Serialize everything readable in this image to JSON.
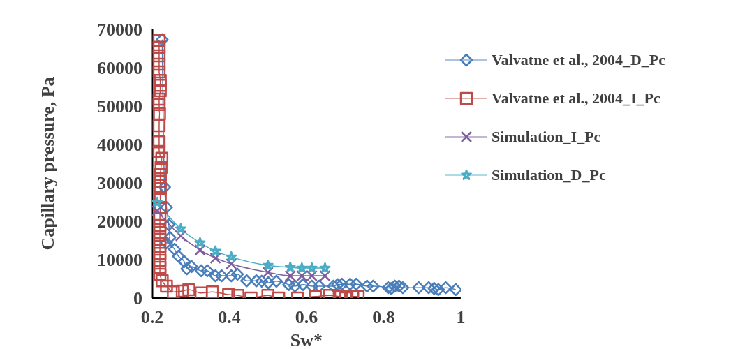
{
  "chart_data": {
    "type": "line",
    "xlabel": "Sw*",
    "ylabel": "Capillary pressure, Pa",
    "xlim": [
      0.2,
      1
    ],
    "xticks": [
      0.2,
      0.4,
      0.6,
      0.8,
      1
    ],
    "ylim": [
      0,
      70000
    ],
    "yticks": [
      0,
      10000,
      20000,
      30000,
      40000,
      50000,
      60000,
      70000
    ],
    "grid": false,
    "legend": "top right",
    "line_style": "solid",
    "series": [
      {
        "name": "Valvatne et al., 2004_D_Pc",
        "color": "#4a7ebb",
        "marker": "diamond",
        "x": [
          0.226,
          0.232,
          0.237,
          0.243,
          0.246,
          0.237,
          0.258,
          0.268,
          0.283,
          0.29,
          0.302,
          0.327,
          0.343,
          0.364,
          0.38,
          0.405,
          0.421,
          0.445,
          0.47,
          0.484,
          0.501,
          0.522,
          0.554,
          0.57,
          0.591,
          0.614,
          0.633,
          0.67,
          0.681,
          0.692,
          0.713,
          0.729,
          0.757,
          0.773,
          0.812,
          0.82,
          0.829,
          0.84,
          0.85,
          0.891,
          0.917,
          0.931,
          0.942,
          0.961,
          0.987
        ],
        "values": [
          67300,
          28900,
          23600,
          19100,
          15800,
          14400,
          12700,
          10900,
          9500,
          7600,
          8200,
          7100,
          7100,
          5800,
          5800,
          5800,
          6200,
          4500,
          4500,
          4400,
          4000,
          4400,
          3500,
          3100,
          3500,
          3100,
          3100,
          3100,
          3500,
          3600,
          3600,
          3600,
          3100,
          3100,
          2700,
          2500,
          3100,
          3100,
          2700,
          2700,
          2700,
          2500,
          2200,
          2700,
          2200
        ]
      },
      {
        "name": "Valvatne et al., 2004_I_Pc",
        "color": "#be4b48",
        "marker": "square",
        "x": [
          0.218,
          0.218,
          0.218,
          0.218,
          0.218,
          0.221,
          0.221,
          0.221,
          0.218,
          0.218,
          0.219,
          0.218,
          0.218,
          0.218,
          0.225,
          0.223,
          0.221,
          0.221,
          0.221,
          0.221,
          0.221,
          0.22,
          0.22,
          0.22,
          0.22,
          0.22,
          0.22,
          0.22,
          0.22,
          0.22,
          0.226,
          0.237,
          0.255,
          0.278,
          0.295,
          0.327,
          0.356,
          0.398,
          0.422,
          0.456,
          0.5,
          0.528,
          0.577,
          0.623,
          0.66,
          0.685,
          0.702,
          0.72,
          0.734
        ],
        "values": [
          67100,
          65300,
          63100,
          60900,
          58900,
          56700,
          55400,
          54000,
          51800,
          50400,
          48000,
          44900,
          40700,
          38200,
          36400,
          34000,
          32200,
          30400,
          28500,
          26200,
          23600,
          20700,
          18900,
          17100,
          15300,
          13500,
          11600,
          9800,
          8000,
          6200,
          4500,
          3100,
          1600,
          1800,
          2200,
          1300,
          1600,
          900,
          700,
          0,
          700,
          0,
          0,
          400,
          700,
          400,
          0,
          400,
          400
        ]
      },
      {
        "name": "Simulation_I_Pc",
        "color": "#7d5fa0",
        "marker": "cross",
        "x": [
          0.213,
          0.274,
          0.324,
          0.364,
          0.405,
          0.5,
          0.558,
          0.588,
          0.614,
          0.648
        ],
        "values": [
          22700,
          16200,
          12500,
          10400,
          8900,
          6700,
          5800,
          5800,
          5800,
          5800
        ]
      },
      {
        "name": "Simulation_D_Pc",
        "color": "#4bacc6",
        "marker": "star",
        "x": [
          0.213,
          0.274,
          0.324,
          0.364,
          0.405,
          0.5,
          0.558,
          0.588,
          0.614,
          0.648
        ],
        "values": [
          24900,
          18000,
          14400,
          12200,
          10700,
          8500,
          8000,
          7800,
          7800,
          7800
        ]
      }
    ]
  }
}
